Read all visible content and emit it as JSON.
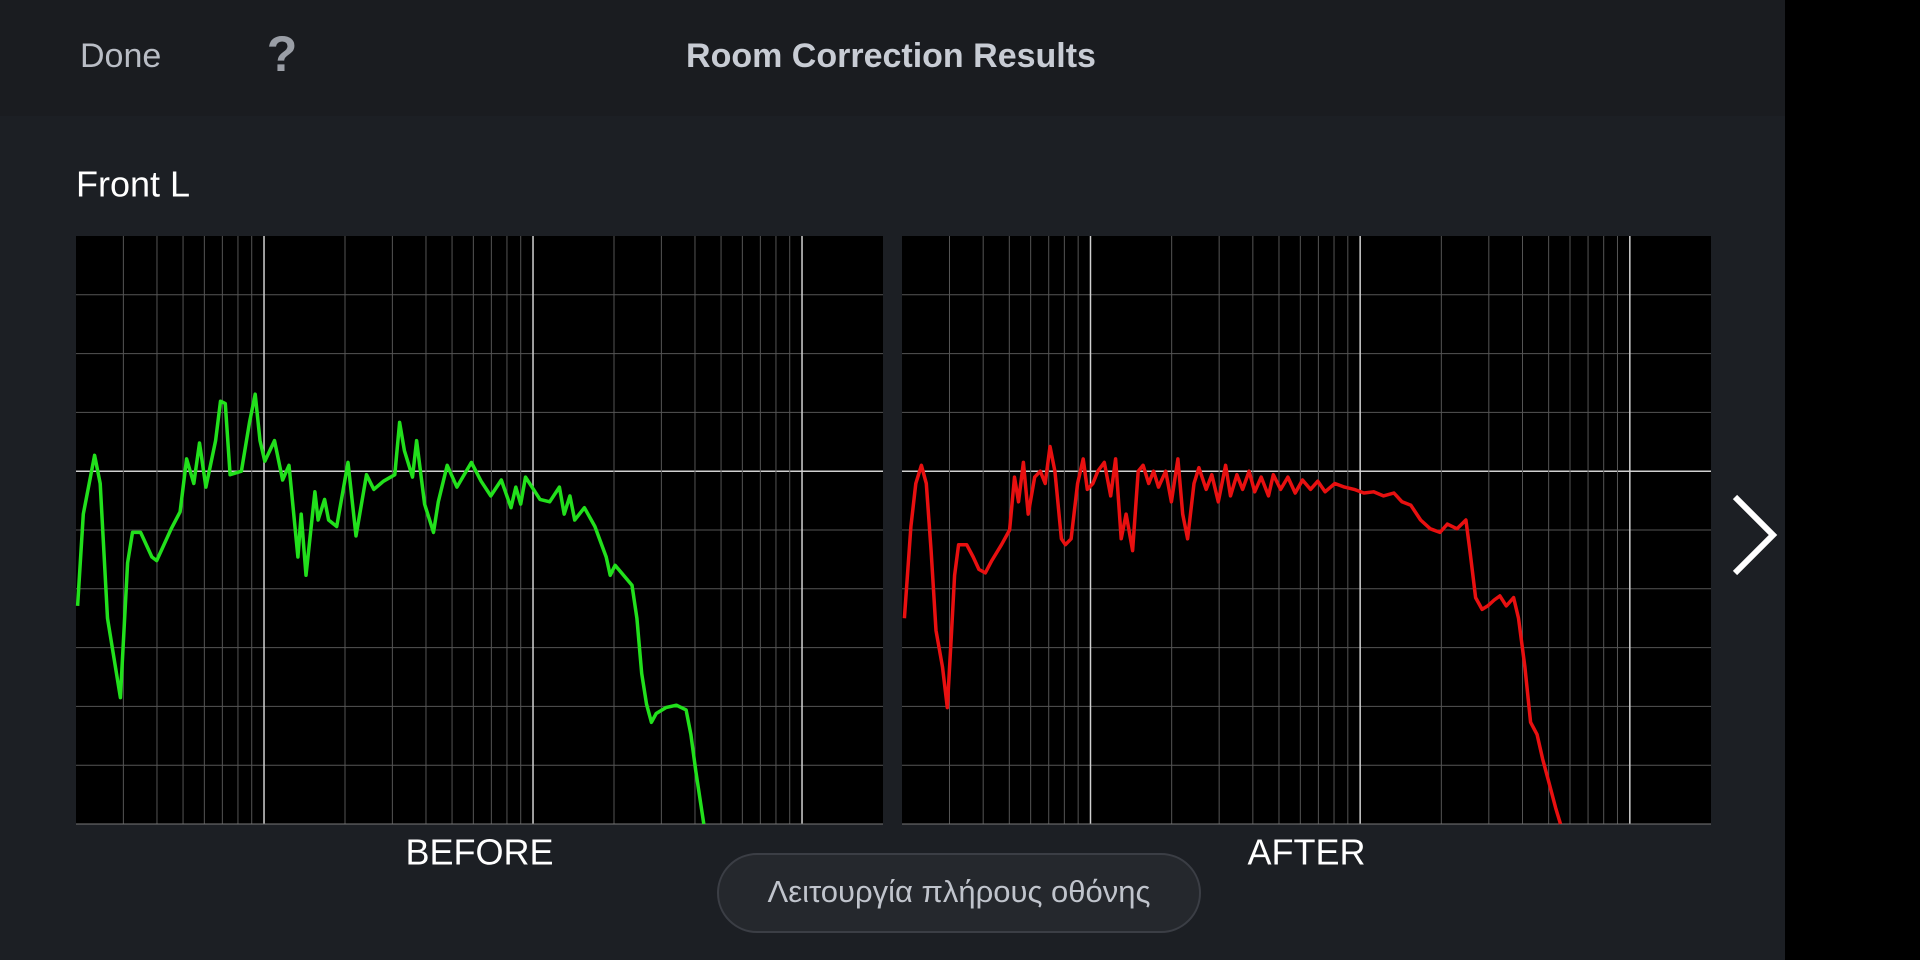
{
  "header": {
    "done": "Done",
    "help": "?",
    "title": "Room Correction Results"
  },
  "channel": "Front L",
  "fullscreen_button": "Λειτουργία πλήρους οθόνης",
  "chart_data": [
    {
      "type": "line",
      "label": "BEFORE",
      "color": "#22e01c",
      "xlim": [
        0,
        100
      ],
      "ylim": [
        0,
        10
      ],
      "x": [
        0.2,
        0.9,
        2.3,
        3.0,
        3.9,
        5.5,
        6.4,
        7.0,
        8.0,
        9.4,
        10.0,
        11.8,
        12.9,
        13.7,
        14.6,
        15.3,
        16.1,
        17.3,
        17.9,
        18.5,
        19.1,
        20.5,
        21.5,
        22.2,
        22.8,
        23.4,
        24.6,
        25.6,
        26.4,
        27.5,
        27.9,
        28.5,
        29.6,
        30.0,
        30.8,
        31.3,
        32.3,
        33.7,
        34.7,
        36.0,
        36.9,
        38.1,
        39.5,
        40.1,
        40.7,
        41.7,
        42.2,
        43.2,
        44.3,
        44.9,
        46.0,
        47.2,
        49.0,
        50.2,
        51.4,
        52.7,
        53.9,
        54.5,
        55.1,
        55.7,
        57.5,
        58.7,
        59.9,
        60.5,
        61.2,
        61.8,
        63.0,
        64.3,
        65.7,
        66.2,
        66.8,
        68.9,
        69.5,
        70.1,
        70.7,
        71.3,
        71.9,
        73.1,
        74.4,
        75.6,
        76.2,
        76.8,
        77.8
      ],
      "values": [
        3.71,
        5.27,
        6.27,
        5.79,
        3.5,
        2.15,
        4.44,
        4.96,
        4.96,
        4.54,
        4.48,
        5.02,
        5.31,
        6.21,
        5.79,
        6.48,
        5.73,
        6.52,
        7.19,
        7.15,
        5.94,
        6.0,
        6.83,
        7.31,
        6.52,
        6.17,
        6.52,
        5.85,
        6.1,
        4.54,
        5.27,
        4.23,
        5.65,
        5.17,
        5.52,
        5.17,
        5.06,
        6.15,
        4.9,
        5.94,
        5.69,
        5.83,
        5.94,
        6.83,
        6.35,
        5.9,
        6.52,
        5.44,
        4.96,
        5.48,
        6.1,
        5.73,
        6.15,
        5.83,
        5.58,
        5.85,
        5.38,
        5.73,
        5.44,
        5.9,
        5.52,
        5.48,
        5.73,
        5.27,
        5.58,
        5.17,
        5.38,
        5.06,
        4.54,
        4.23,
        4.4,
        4.06,
        3.5,
        2.56,
        2.04,
        1.73,
        1.88,
        1.98,
        2.02,
        1.94,
        1.52,
        0.9,
        0
      ]
    },
    {
      "type": "line",
      "label": "AFTER",
      "color": "#e81010",
      "xlim": [
        0,
        100
      ],
      "ylim": [
        0,
        10
      ],
      "x": [
        0.3,
        1.1,
        1.7,
        2.4,
        3.0,
        3.6,
        4.2,
        5.0,
        5.6,
        6.1,
        6.5,
        7.0,
        8.0,
        8.8,
        9.5,
        10.3,
        11.1,
        12.3,
        13.3,
        13.9,
        14.4,
        15.0,
        15.6,
        16.4,
        17.1,
        17.7,
        18.3,
        18.9,
        19.7,
        20.2,
        20.9,
        21.7,
        22.4,
        22.9,
        23.6,
        24.2,
        25.0,
        25.8,
        26.4,
        27.1,
        27.7,
        28.5,
        29.2,
        29.8,
        30.5,
        31.1,
        31.7,
        32.6,
        33.3,
        34.1,
        34.7,
        35.3,
        36.1,
        36.7,
        37.6,
        38.3,
        39.1,
        40.0,
        40.6,
        41.4,
        42.1,
        42.9,
        43.6,
        44.4,
        45.3,
        45.9,
        46.8,
        47.7,
        48.6,
        49.5,
        50.5,
        51.4,
        52.3,
        53.5,
        54.7,
        55.9,
        57.1,
        58.3,
        59.5,
        60.8,
        61.8,
        62.9,
        64.1,
        65.3,
        66.5,
        67.4,
        68.6,
        69.7,
        70.2,
        70.9,
        71.7,
        72.4,
        73.2,
        73.9,
        74.7,
        75.6,
        76.2,
        77.0,
        77.7,
        78.5,
        79.2,
        80.0,
        80.8,
        81.4
      ],
      "values": [
        3.5,
        5.06,
        5.79,
        6.1,
        5.79,
        4.65,
        3.29,
        2.67,
        1.98,
        3.19,
        4.23,
        4.75,
        4.75,
        4.54,
        4.33,
        4.27,
        4.48,
        4.75,
        5.0,
        5.9,
        5.48,
        6.15,
        5.27,
        5.9,
        6.0,
        5.79,
        6.42,
        6.0,
        4.85,
        4.75,
        4.85,
        5.79,
        6.21,
        5.69,
        5.79,
        6.0,
        6.15,
        5.58,
        6.21,
        4.85,
        5.27,
        4.65,
        6.0,
        6.1,
        5.79,
        6.0,
        5.73,
        6.0,
        5.48,
        6.21,
        5.27,
        4.85,
        5.79,
        6.06,
        5.69,
        5.94,
        5.48,
        6.1,
        5.58,
        5.94,
        5.69,
        6.0,
        5.65,
        5.9,
        5.58,
        5.94,
        5.69,
        5.9,
        5.63,
        5.85,
        5.69,
        5.83,
        5.65,
        5.79,
        5.73,
        5.69,
        5.63,
        5.65,
        5.58,
        5.63,
        5.48,
        5.42,
        5.17,
        5.02,
        4.96,
        5.1,
        5.02,
        5.17,
        4.65,
        3.85,
        3.65,
        3.71,
        3.81,
        3.88,
        3.71,
        3.85,
        3.5,
        2.67,
        1.73,
        1.52,
        1.1,
        0.69,
        0.27,
        0
      ]
    }
  ]
}
